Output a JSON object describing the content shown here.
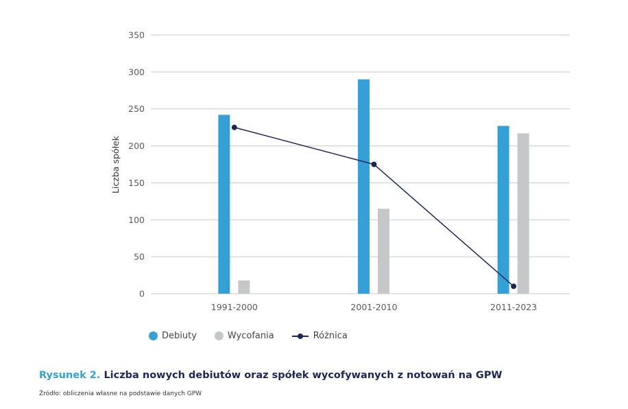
{
  "chart_data": {
    "type": "bar",
    "title": "",
    "xlabel": "",
    "ylabel": "Liczba spółek",
    "ylim": [
      0,
      350
    ],
    "yticks": [
      0,
      50,
      100,
      150,
      200,
      250,
      300,
      350
    ],
    "grid": true,
    "legend_position": "bottom-left",
    "categories": [
      "1991-2000",
      "2001-2010",
      "2011-2023"
    ],
    "series": [
      {
        "name": "Debiuty",
        "type": "bar",
        "color": "#35a0d6",
        "values": [
          242,
          290,
          227
        ]
      },
      {
        "name": "Wycofania",
        "type": "bar",
        "color": "#c6c7c9",
        "values": [
          18,
          115,
          217
        ]
      },
      {
        "name": "Różnica",
        "type": "line",
        "color": "#1c2657",
        "values": [
          225,
          175,
          10
        ]
      }
    ]
  },
  "caption": {
    "prefix": "Rysunek 2.",
    "text": "Liczba nowych debiutów oraz spółek wycofywanych z notowań na GPW"
  },
  "source": "Źródło: obliczenia własne na podstawie danych GPW"
}
